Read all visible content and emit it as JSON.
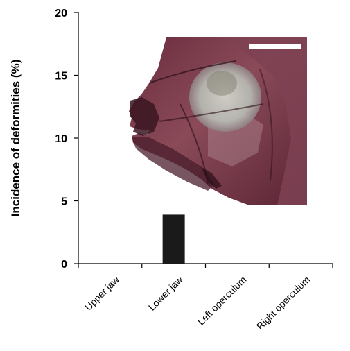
{
  "chart_data": {
    "type": "bar",
    "categories": [
      "Upper jaw",
      "Lower jaw",
      "Left operculum",
      "Right operculum"
    ],
    "values": [
      0,
      3.9,
      0,
      0
    ],
    "ylabel": "Incidence of deformities  (%)",
    "xlabel": "",
    "ylim": [
      0,
      20
    ],
    "yticks": [
      0,
      5,
      10,
      15,
      20
    ],
    "bar_color": "#1a1a1a",
    "grid": false,
    "legend": "none"
  },
  "inset_image": {
    "subject": "stained-fish-head-specimen",
    "scale_bar": true,
    "colors": {
      "background": "#ffffff",
      "tissue_dark": "#4a1e2c",
      "tissue_mid": "#7a3a4a",
      "tissue_light": "#b88a94",
      "bone": "#cfd3cc",
      "scale_bar": "#ffffff"
    }
  }
}
